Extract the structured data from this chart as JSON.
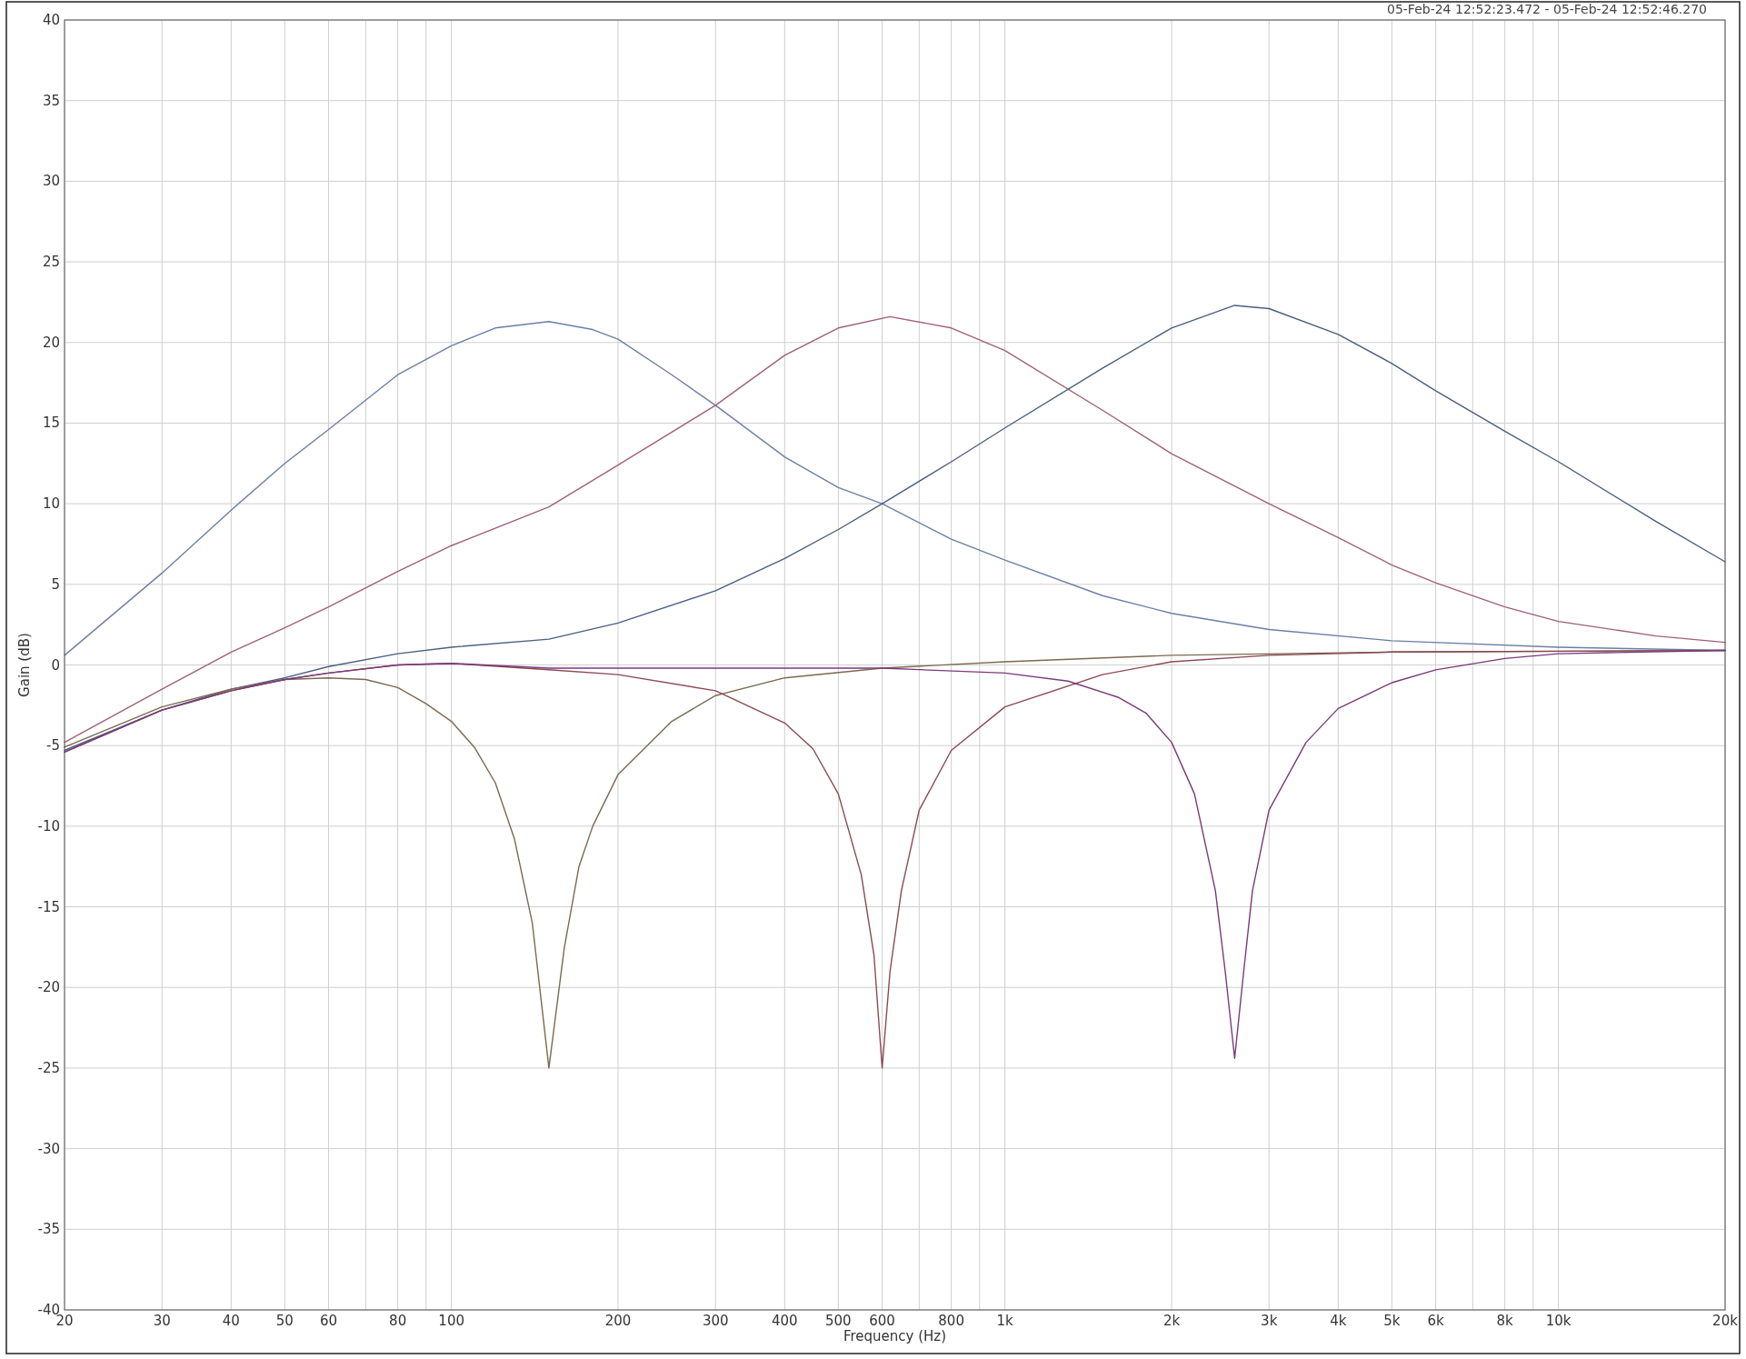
{
  "chart_data": {
    "type": "line",
    "xlabel": "Frequency (Hz)",
    "ylabel": "Gain (dB)",
    "annotations": [
      "05-Feb-24 12:52:23.472 - 05-Feb-24 12:52:46.270"
    ],
    "log": "x",
    "grid": true,
    "line_style": "solid",
    "xlim": [
      20,
      20000
    ],
    "ylim": [
      -40,
      40
    ],
    "xticks": [
      20,
      30,
      40,
      50,
      60,
      {
        "value": 70,
        "label": null
      },
      80,
      {
        "value": 90,
        "label": null
      },
      100,
      200,
      300,
      400,
      500,
      600,
      {
        "value": 700,
        "label": null
      },
      800,
      {
        "value": 900,
        "label": null
      },
      {
        "value": 1000,
        "label": "1k"
      },
      {
        "value": 2000,
        "label": "2k"
      },
      {
        "value": 3000,
        "label": "3k"
      },
      {
        "value": 4000,
        "label": "4k"
      },
      {
        "value": 5000,
        "label": "5k"
      },
      {
        "value": 6000,
        "label": "6k"
      },
      {
        "value": 7000,
        "label": null
      },
      {
        "value": 8000,
        "label": "8k"
      },
      {
        "value": 9000,
        "label": null
      },
      {
        "value": 10000,
        "label": "10k"
      },
      {
        "value": 20000,
        "label": "20k"
      }
    ],
    "yticks": [
      -40,
      -35,
      -30,
      -25,
      -20,
      -15,
      -10,
      -5,
      0,
      5,
      10,
      15,
      20,
      25,
      30,
      35,
      40
    ],
    "series": [
      {
        "color": "#6b7fa6",
        "x": [
          20,
          30,
          40,
          50,
          60,
          80,
          100,
          120,
          150,
          180,
          200,
          250,
          300,
          400,
          500,
          600,
          800,
          1000,
          1500,
          2000,
          3000,
          5000,
          10000,
          20000
        ],
        "values": [
          0.6,
          5.7,
          9.6,
          12.5,
          14.6,
          18.0,
          19.8,
          20.9,
          21.3,
          20.8,
          20.2,
          18.0,
          16.1,
          12.9,
          11.0,
          10.0,
          7.8,
          6.5,
          4.3,
          3.2,
          2.2,
          1.5,
          1.1,
          0.9
        ]
      },
      {
        "color": "#a0607a",
        "x": [
          20,
          30,
          40,
          50,
          60,
          80,
          100,
          150,
          200,
          300,
          400,
          500,
          620,
          800,
          1000,
          1500,
          2000,
          3000,
          4000,
          5000,
          6000,
          8000,
          10000,
          15000,
          20000
        ],
        "values": [
          -4.8,
          -1.5,
          0.8,
          2.3,
          3.6,
          5.8,
          7.4,
          9.8,
          12.4,
          16.1,
          19.2,
          20.9,
          21.6,
          20.9,
          19.5,
          15.8,
          13.1,
          10.0,
          7.9,
          6.2,
          5.1,
          3.6,
          2.7,
          1.8,
          1.4
        ]
      },
      {
        "color": "#4a5f80",
        "x": [
          20,
          30,
          40,
          50,
          60,
          80,
          100,
          150,
          200,
          300,
          400,
          500,
          600,
          800,
          1000,
          1500,
          2000,
          2600,
          3000,
          4000,
          5000,
          6000,
          8000,
          10000,
          15000,
          20000
        ],
        "values": [
          -5.3,
          -2.8,
          -1.5,
          -0.8,
          -0.1,
          0.7,
          1.1,
          1.6,
          2.6,
          4.6,
          6.6,
          8.4,
          10.0,
          12.6,
          14.7,
          18.4,
          20.9,
          22.3,
          22.1,
          20.5,
          18.7,
          17.0,
          14.5,
          12.6,
          8.9,
          6.4
        ]
      },
      {
        "color": "#7a6a50",
        "x": [
          20,
          30,
          40,
          50,
          60,
          70,
          80,
          90,
          100,
          110,
          120,
          130,
          140,
          150,
          160,
          170,
          180,
          200,
          250,
          300,
          400,
          600,
          1000,
          2000,
          5000,
          20000
        ],
        "values": [
          -5.1,
          -2.6,
          -1.5,
          -0.9,
          -0.8,
          -0.9,
          -1.4,
          -2.4,
          -3.5,
          -5.1,
          -7.3,
          -10.8,
          -16,
          -25,
          -17.5,
          -12.5,
          -10,
          -6.8,
          -3.5,
          -1.9,
          -0.8,
          -0.2,
          0.2,
          0.6,
          0.8,
          0.9
        ]
      },
      {
        "color": "#8a4a55",
        "x": [
          20,
          30,
          40,
          50,
          60,
          80,
          100,
          150,
          200,
          300,
          400,
          450,
          500,
          550,
          580,
          600,
          620,
          650,
          700,
          800,
          1000,
          1500,
          2000,
          3000,
          5000,
          20000
        ],
        "values": [
          -5.4,
          -2.8,
          -1.6,
          -0.9,
          -0.5,
          0,
          0.1,
          -0.3,
          -0.6,
          -1.6,
          -3.6,
          -5.2,
          -8.0,
          -13,
          -18,
          -25,
          -19,
          -14,
          -9,
          -5.3,
          -2.6,
          -0.6,
          0.2,
          0.6,
          0.8,
          0.9
        ]
      },
      {
        "color": "#7a3a7a",
        "x": [
          20,
          30,
          40,
          50,
          60,
          80,
          100,
          150,
          300,
          600,
          1000,
          1300,
          1600,
          1800,
          2000,
          2200,
          2400,
          2500,
          2600,
          2700,
          2800,
          3000,
          3500,
          4000,
          5000,
          6000,
          8000,
          10000,
          20000
        ],
        "values": [
          -5.4,
          -2.8,
          -1.6,
          -0.9,
          -0.5,
          0,
          0.1,
          -0.2,
          -0.2,
          -0.2,
          -0.5,
          -1,
          -2,
          -3,
          -4.8,
          -8,
          -14,
          -19,
          -24.4,
          -19,
          -14,
          -9,
          -4.8,
          -2.7,
          -1.1,
          -0.3,
          0.4,
          0.7,
          0.9
        ]
      }
    ]
  }
}
